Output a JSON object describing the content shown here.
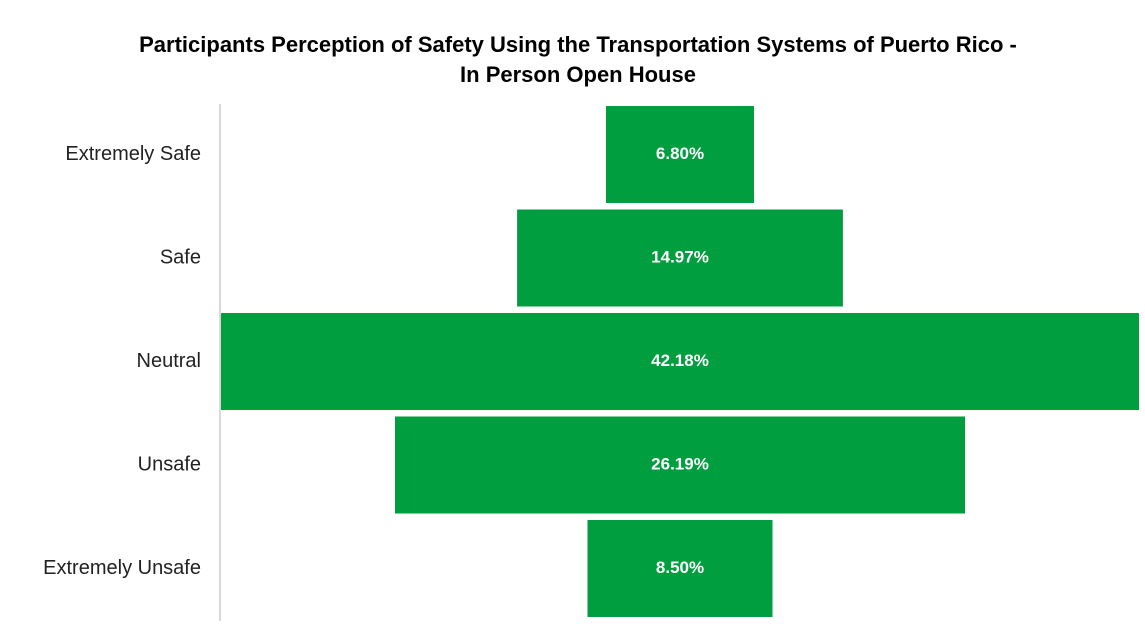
{
  "chart_data": {
    "type": "funnel",
    "title": [
      "Participants Perception of Safety Using the Transportation Systems  of Puerto Rico -",
      "In Person Open House"
    ],
    "categories": [
      "Extremely Safe",
      "Safe",
      "Neutral",
      "Unsafe",
      "Extremely Unsafe"
    ],
    "values": [
      6.8,
      14.97,
      42.18,
      26.19,
      8.5
    ],
    "value_labels": [
      "6.80%",
      "14.97%",
      "42.18%",
      "26.19%",
      "8.50%"
    ],
    "color": "#009e3f"
  }
}
